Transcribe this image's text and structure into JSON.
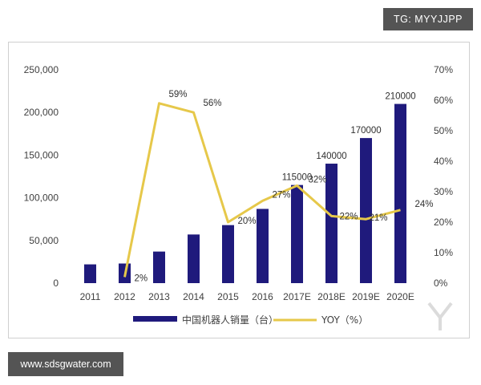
{
  "top_tag": "TG: MYYJJPP",
  "bottom_tag": "www.sdsgwater.com",
  "colors": {
    "bar": "#1f1a7c",
    "line": "#e6c84a",
    "axis_text": "#404040"
  },
  "chart_data": {
    "type": "bar",
    "categories": [
      "2011",
      "2012",
      "2013",
      "2014",
      "2015",
      "2016",
      "2017E",
      "2018E",
      "2019E",
      "2020E"
    ],
    "series": [
      {
        "name": "中国机器人销量（台）",
        "type": "bar",
        "axis": "left",
        "values": [
          22000,
          23000,
          37000,
          57000,
          68000,
          87000,
          115000,
          140000,
          170000,
          210000
        ],
        "labels": [
          "",
          "",
          "",
          "",
          "",
          "",
          "115000",
          "140000",
          "170000",
          "210000"
        ]
      },
      {
        "name": "YOY（%）",
        "type": "line",
        "axis": "right",
        "values": [
          null,
          2,
          59,
          56,
          20,
          27,
          32,
          22,
          21,
          24
        ],
        "labels": [
          "",
          "2%",
          "59%",
          "56%",
          "20%",
          "27%",
          "32%",
          "22%",
          "21%",
          "24%"
        ]
      }
    ],
    "y_left": {
      "range": [
        0,
        250000
      ],
      "ticks": [
        "0",
        "50,000",
        "100,000",
        "150,000",
        "200,000",
        "250,000"
      ]
    },
    "y_right": {
      "range": [
        0,
        70
      ],
      "ticks": [
        "0%",
        "10%",
        "20%",
        "30%",
        "40%",
        "50%",
        "60%",
        "70%"
      ]
    },
    "legend_position": "bottom",
    "grid": false
  }
}
